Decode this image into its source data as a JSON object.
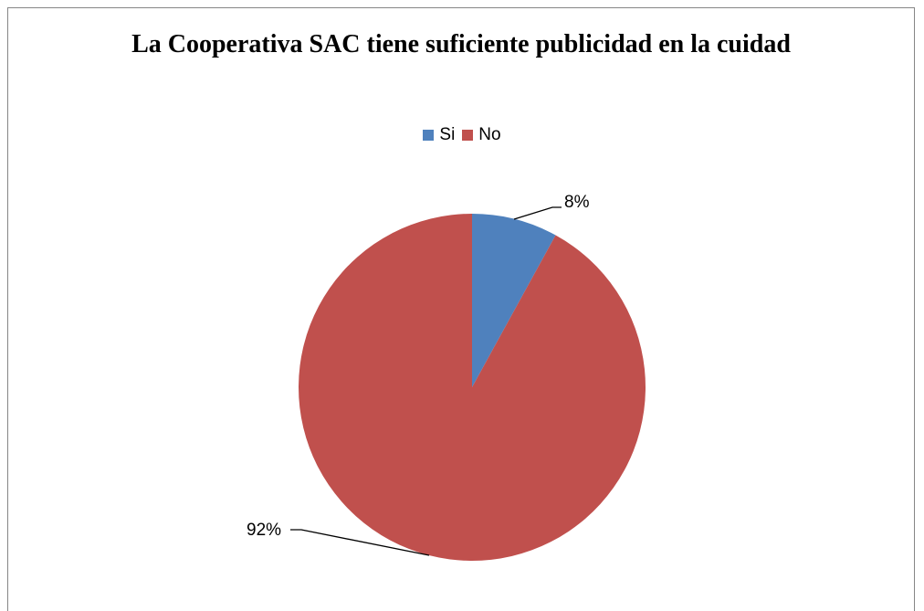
{
  "chart_data": {
    "type": "pie",
    "title": "La Cooperativa SAC tiene suficiente publicidad en la cuidad",
    "categories": [
      "Si",
      "No"
    ],
    "values": [
      8,
      92
    ],
    "data_labels": [
      "8%",
      "92%"
    ],
    "colors": [
      "#4F81BD",
      "#C0504D"
    ],
    "legend_position": "top"
  }
}
